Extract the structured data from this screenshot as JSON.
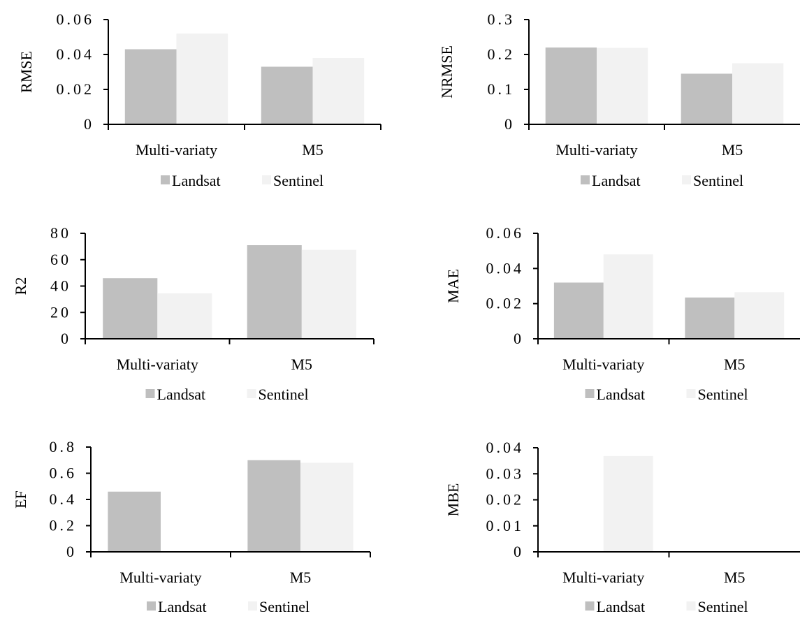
{
  "colors": {
    "landsat": "#bfbfbf",
    "sentinel": "#f2f2f2",
    "axis": "#000000"
  },
  "legend": [
    "Landsat",
    "Sentinel"
  ],
  "chart_data": [
    {
      "type": "bar",
      "ylabel": "RMSE",
      "categories": [
        "Multi-variaty",
        "M5"
      ],
      "series": [
        {
          "name": "Landsat",
          "values": [
            0.043,
            0.033
          ]
        },
        {
          "name": "Sentinel",
          "values": [
            0.052,
            0.038
          ]
        }
      ],
      "ylim": [
        0,
        0.06
      ],
      "yticks": [
        0,
        0.02,
        0.04,
        0.06
      ],
      "yticklabels": [
        "0",
        "0.02",
        "0.04",
        "0.06"
      ],
      "legend": "bottom"
    },
    {
      "type": "bar",
      "ylabel": "NRMSE",
      "categories": [
        "Multi-variaty",
        "M5"
      ],
      "series": [
        {
          "name": "Landsat",
          "values": [
            0.22,
            0.145
          ]
        },
        {
          "name": "Sentinel",
          "values": [
            0.219,
            0.175
          ]
        }
      ],
      "ylim": [
        0,
        0.3
      ],
      "yticks": [
        0,
        0.1,
        0.2,
        0.3
      ],
      "yticklabels": [
        "0",
        "0.1",
        "0.2",
        "0.3"
      ],
      "legend": "bottom"
    },
    {
      "type": "bar",
      "ylabel": "R2",
      "categories": [
        "Multi-variaty",
        "M5"
      ],
      "series": [
        {
          "name": "Landsat",
          "values": [
            46,
            71
          ]
        },
        {
          "name": "Sentinel",
          "values": [
            34.5,
            67.5
          ]
        }
      ],
      "ylim": [
        0,
        80
      ],
      "yticks": [
        0,
        20,
        40,
        60,
        80
      ],
      "yticklabels": [
        "0",
        "20",
        "40",
        "60",
        "80"
      ],
      "legend": "bottom"
    },
    {
      "type": "bar",
      "ylabel": "MAE",
      "categories": [
        "Multi-variaty",
        "M5"
      ],
      "series": [
        {
          "name": "Landsat",
          "values": [
            0.032,
            0.0235
          ]
        },
        {
          "name": "Sentinel",
          "values": [
            0.048,
            0.0265
          ]
        }
      ],
      "ylim": [
        0,
        0.06
      ],
      "yticks": [
        0,
        0.02,
        0.04,
        0.06
      ],
      "yticklabels": [
        "0",
        "0.02",
        "0.04",
        "0.06"
      ],
      "legend": "bottom"
    },
    {
      "type": "bar",
      "ylabel": "EF",
      "categories": [
        "Multi-variaty",
        "M5"
      ],
      "series": [
        {
          "name": "Landsat",
          "values": [
            0.46,
            0.7
          ]
        },
        {
          "name": "Sentinel",
          "values": [
            0,
            0.68
          ]
        }
      ],
      "ylim": [
        0,
        0.8
      ],
      "yticks": [
        0,
        0.2,
        0.4,
        0.6,
        0.8
      ],
      "yticklabels": [
        "0",
        "0.2",
        "0.4",
        "0.6",
        "0.8"
      ],
      "legend": "bottom"
    },
    {
      "type": "bar",
      "ylabel": "MBE",
      "categories": [
        "Multi-variaty",
        "M5"
      ],
      "series": [
        {
          "name": "Landsat",
          "values": [
            0,
            0
          ]
        },
        {
          "name": "Sentinel",
          "values": [
            0.0368,
            0
          ]
        }
      ],
      "ylim": [
        0,
        0.04
      ],
      "yticks": [
        0,
        0.01,
        0.02,
        0.03,
        0.04
      ],
      "yticklabels": [
        "0",
        "0.01",
        "0.02",
        "0.03",
        "0.04"
      ],
      "legend": "bottom"
    }
  ]
}
